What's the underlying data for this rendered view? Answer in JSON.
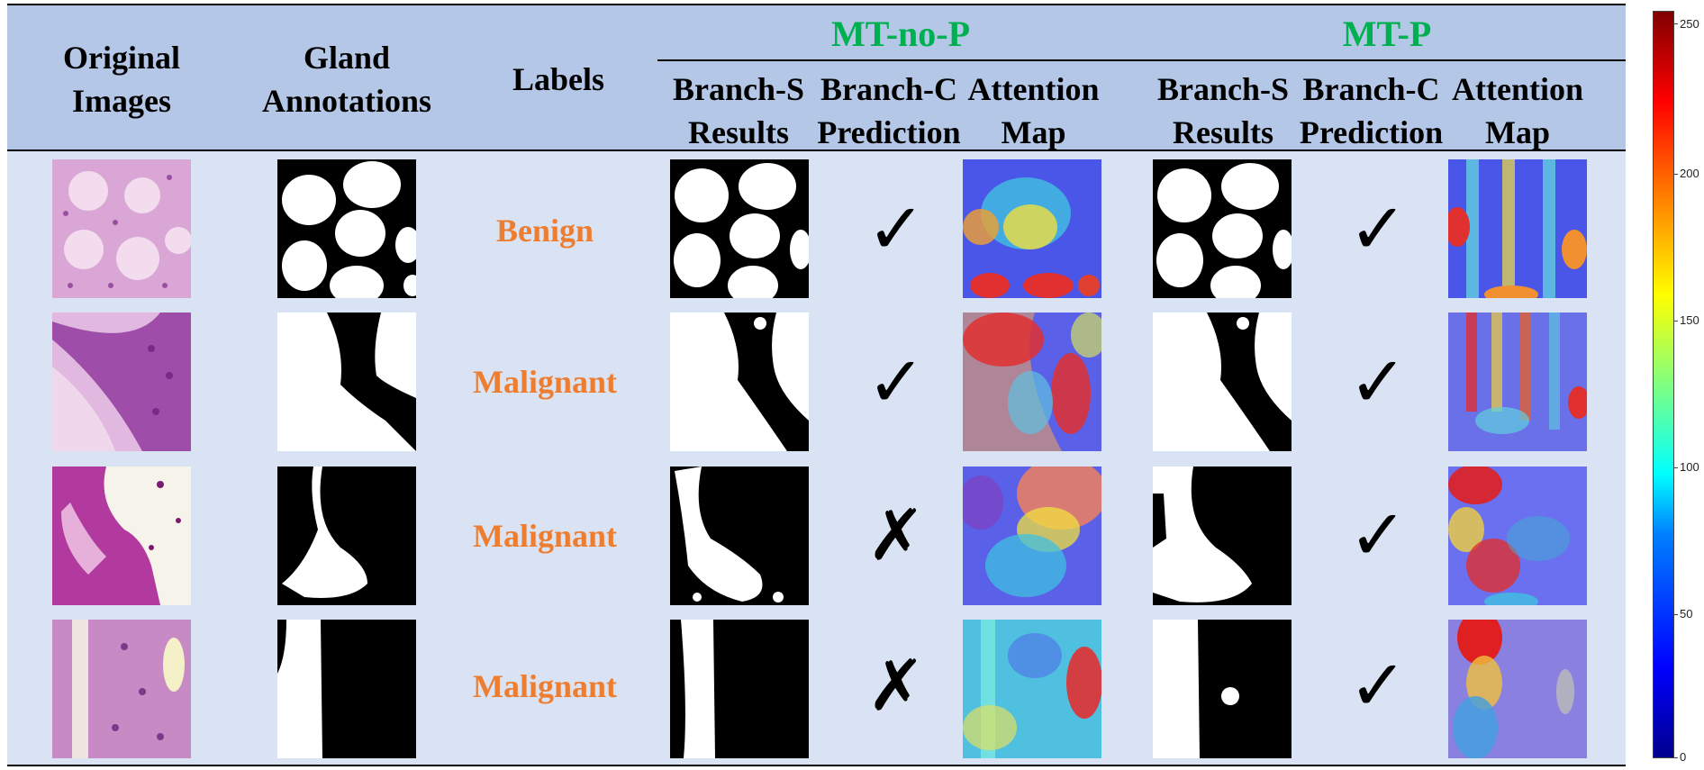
{
  "headers": {
    "original_images": "Original\nImages",
    "gland_annotations": "Gland\nAnnotations",
    "labels": "Labels",
    "group_no_p": "MT-no-P",
    "group_p": "MT-P",
    "branch_s": "Branch-S\nResults",
    "branch_c": "Branch-C\nPrediction",
    "attention": "Attention\nMap"
  },
  "rows": [
    {
      "label": "Benign",
      "mt_no_p_prediction": "✓",
      "mt_p_prediction": "✓"
    },
    {
      "label": "Malignant",
      "mt_no_p_prediction": "✓",
      "mt_p_prediction": "✓"
    },
    {
      "label": "Malignant",
      "mt_no_p_prediction": "✗",
      "mt_p_prediction": "✓"
    },
    {
      "label": "Malignant",
      "mt_no_p_prediction": "✗",
      "mt_p_prediction": "✓"
    }
  ],
  "colorbar": {
    "ticks": [
      "250",
      "200",
      "150",
      "100",
      "50",
      "0"
    ],
    "colormap": "jet"
  },
  "colors": {
    "header_bg": "#b4c7e7",
    "body_bg": "#dae3f3",
    "group_title": "#00b050",
    "label_text": "#ed7d31"
  }
}
